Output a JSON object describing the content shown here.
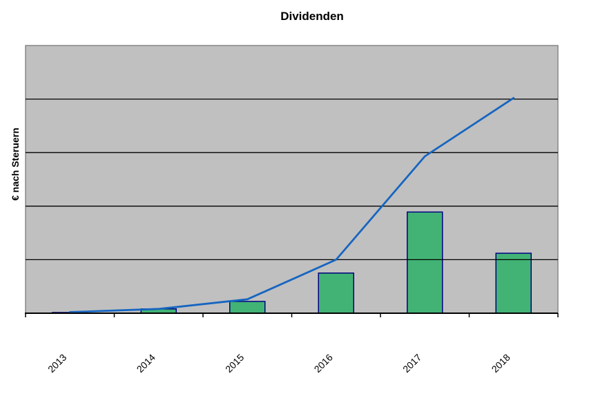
{
  "chart_data": {
    "type": "combo",
    "title": "Dividenden",
    "ylabel": "€ nach Steruern",
    "xlabel": "",
    "categories": [
      "2013",
      "2014",
      "2015",
      "2016",
      "2017",
      "2018"
    ],
    "series": [
      {
        "type": "bar",
        "values": [
          0.01,
          0.08,
          0.22,
          0.75,
          1.89,
          1.12
        ],
        "fill": "#42b374",
        "stroke": "#000080"
      },
      {
        "type": "line",
        "values": [
          0.02,
          0.08,
          0.26,
          1.0,
          2.93,
          4.02
        ],
        "stroke": "#1565c0"
      }
    ],
    "ylim": [
      0,
      5
    ],
    "y_axis_labeled": false,
    "gridlines": "horizontal",
    "grid_color": "#000000",
    "plot_bg": "#c0c0c0",
    "plot_border": "#868686",
    "axis_color": "#000000",
    "legend": false
  }
}
